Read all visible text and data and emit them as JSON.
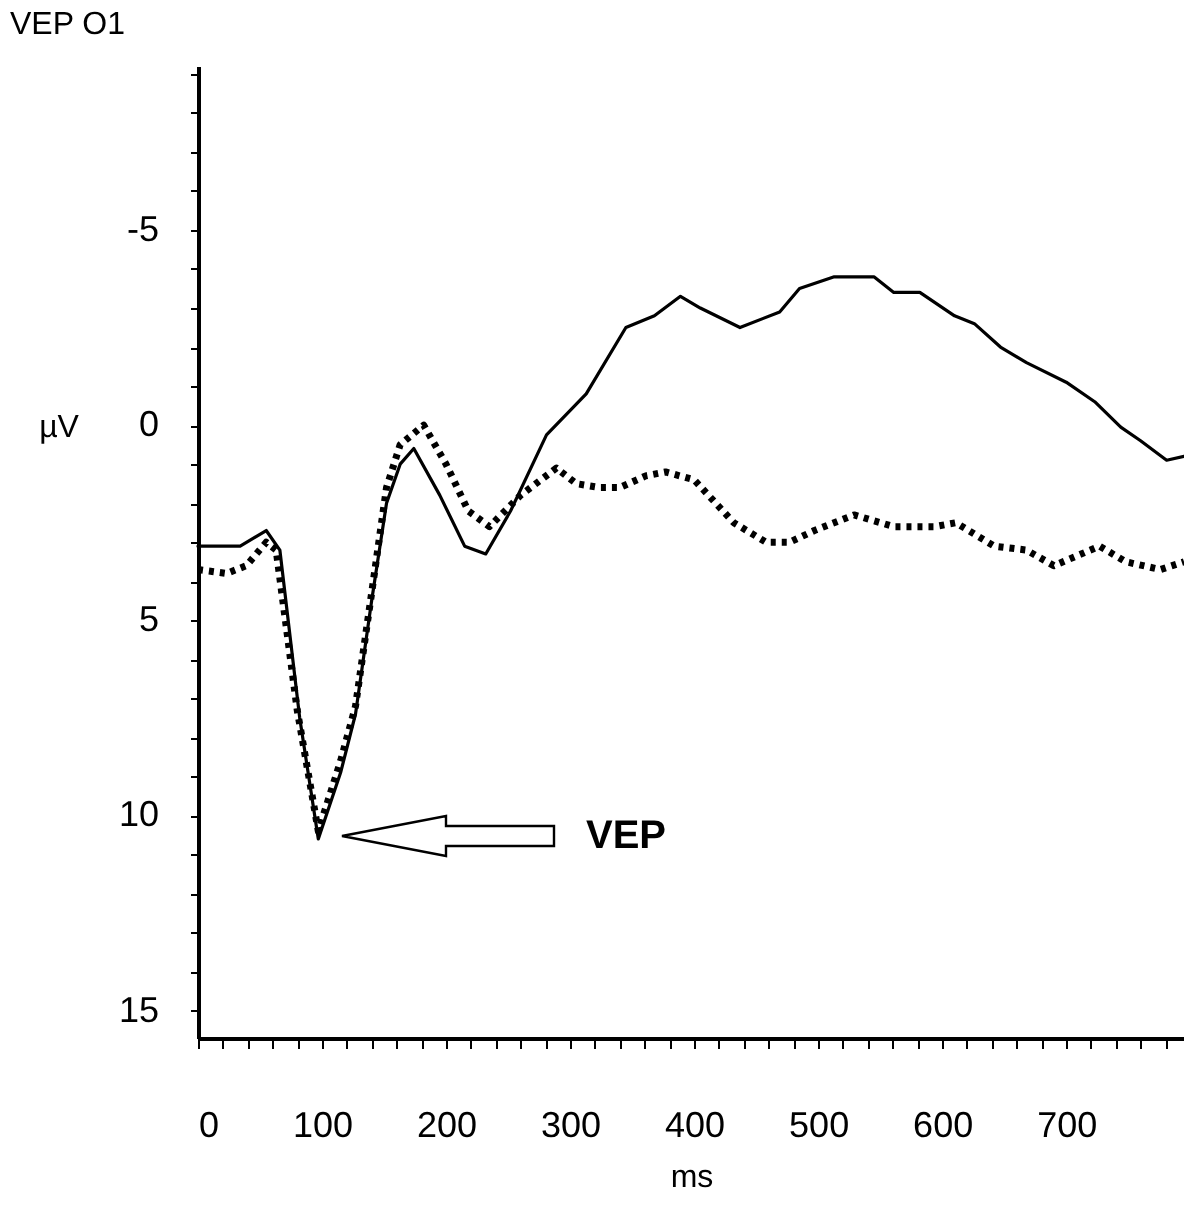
{
  "chart_data": {
    "type": "line",
    "title": "VEP O1",
    "xlabel": "ms",
    "ylabel": "µV",
    "xlim": [
      0,
      795
    ],
    "ylim": [
      15.7,
      -9.2
    ],
    "xticks": [
      0,
      {
        "value": 20,
        "label": null
      },
      {
        "value": 40,
        "label": null
      },
      {
        "value": 60,
        "label": null
      },
      {
        "value": 80,
        "label": null
      },
      100,
      {
        "value": 120,
        "label": null
      },
      {
        "value": 140,
        "label": null
      },
      {
        "value": 160,
        "label": null
      },
      {
        "value": 180,
        "label": null
      },
      200,
      {
        "value": 220,
        "label": null
      },
      {
        "value": 240,
        "label": null
      },
      {
        "value": 260,
        "label": null
      },
      {
        "value": 280,
        "label": null
      },
      300,
      {
        "value": 320,
        "label": null
      },
      {
        "value": 340,
        "label": null
      },
      {
        "value": 360,
        "label": null
      },
      {
        "value": 380,
        "label": null
      },
      400,
      {
        "value": 420,
        "label": null
      },
      {
        "value": 440,
        "label": null
      },
      {
        "value": 460,
        "label": null
      },
      {
        "value": 480,
        "label": null
      },
      500,
      {
        "value": 520,
        "label": null
      },
      {
        "value": 540,
        "label": null
      },
      {
        "value": 560,
        "label": null
      },
      {
        "value": 580,
        "label": null
      },
      600,
      {
        "value": 620,
        "label": null
      },
      {
        "value": 640,
        "label": null
      },
      {
        "value": 660,
        "label": null
      },
      {
        "value": 680,
        "label": null
      },
      700,
      {
        "value": 720,
        "label": null
      },
      {
        "value": 740,
        "label": null
      },
      {
        "value": 760,
        "label": null
      },
      {
        "value": 780,
        "label": null
      }
    ],
    "yticks": [
      {
        "value": -9,
        "label": null
      },
      {
        "value": -8,
        "label": null
      },
      {
        "value": -7,
        "label": null
      },
      {
        "value": -6,
        "label": null
      },
      -5,
      {
        "value": -4,
        "label": null
      },
      {
        "value": -3,
        "label": null
      },
      {
        "value": -2,
        "label": null
      },
      {
        "value": -1,
        "label": null
      },
      0,
      {
        "value": 1,
        "label": null
      },
      {
        "value": 2,
        "label": null
      },
      {
        "value": 3,
        "label": null
      },
      {
        "value": 4,
        "label": null
      },
      5,
      {
        "value": 6,
        "label": null
      },
      {
        "value": 7,
        "label": null
      },
      {
        "value": 8,
        "label": null
      },
      {
        "value": 9,
        "label": null
      },
      10,
      {
        "value": 11,
        "label": null
      },
      {
        "value": 12,
        "label": null
      },
      {
        "value": 13,
        "label": null
      },
      {
        "value": 14,
        "label": null
      },
      15
    ],
    "grid": false,
    "marker": "none",
    "series": [
      {
        "color": "#000000",
        "line_style": "solid",
        "x": [
          0,
          34,
          55,
          66,
          82,
          97,
          115,
          127,
          140,
          152,
          163,
          174,
          195,
          215,
          232,
          252,
          281,
          313,
          345,
          368,
          389,
          405,
          437,
          469,
          485,
          513,
          545,
          561,
          582,
          610,
          626,
          647,
          668,
          700,
          723,
          744,
          760,
          781,
          795
        ],
        "values": [
          3.1,
          3.1,
          2.7,
          3.2,
          7.5,
          10.6,
          8.9,
          7.4,
          4.5,
          2.0,
          1.0,
          0.6,
          1.8,
          3.1,
          3.3,
          2.2,
          0.25,
          -0.8,
          -2.5,
          -2.8,
          -3.3,
          -3.0,
          -2.5,
          -2.9,
          -3.5,
          -3.8,
          -3.8,
          -3.4,
          -3.4,
          -2.8,
          -2.6,
          -2.0,
          -1.6,
          -1.1,
          -0.6,
          0.05,
          0.4,
          0.9,
          0.8
        ]
      },
      {
        "color": "#000000",
        "line_style": "dotted",
        "x": [
          0,
          23,
          39,
          55,
          63,
          80,
          97,
          115,
          127,
          140,
          152,
          163,
          182,
          200,
          218,
          235,
          260,
          289,
          305,
          324,
          340,
          361,
          377,
          400,
          432,
          458,
          477,
          497,
          529,
          561,
          594,
          611,
          642,
          668,
          690,
          727,
          748,
          776,
          795
        ],
        "values": [
          3.7,
          3.8,
          3.6,
          3.0,
          3.2,
          7.3,
          10.4,
          8.6,
          7.2,
          4.3,
          1.6,
          0.5,
          0.0,
          1.0,
          2.2,
          2.6,
          1.8,
          1.1,
          1.5,
          1.6,
          1.6,
          1.3,
          1.2,
          1.4,
          2.5,
          3.0,
          3.0,
          2.7,
          2.3,
          2.6,
          2.6,
          2.5,
          3.1,
          3.2,
          3.6,
          3.1,
          3.5,
          3.7,
          3.5
        ]
      }
    ],
    "annotations": [
      "VEP"
    ]
  }
}
